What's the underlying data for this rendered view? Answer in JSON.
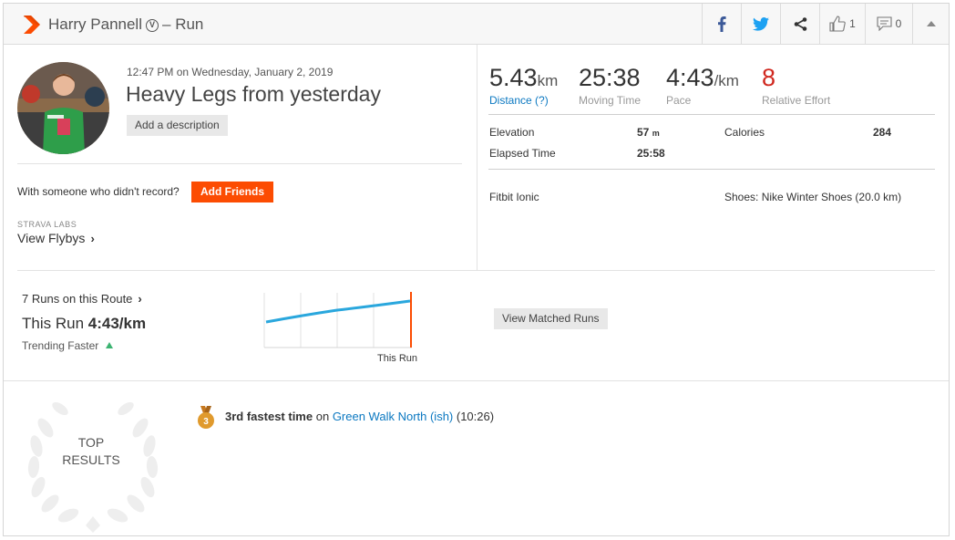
{
  "header": {
    "athlete": "Harry Pannell",
    "separator": "–",
    "sport": "Run",
    "kudos_count": "1",
    "comment_count": "0"
  },
  "activity": {
    "datetime": "12:47 PM on Wednesday, January 2, 2019",
    "name": "Heavy Legs from yesterday",
    "add_description_label": "Add a description",
    "with_someone_text": "With someone who didn't record?",
    "add_friends_label": "Add Friends",
    "labs_label": "STRAVA LABS",
    "flybys_label": "View Flybys"
  },
  "stats": {
    "distance": {
      "value": "5.43",
      "unit": "km",
      "label": "Distance (?)"
    },
    "moving_time": {
      "value": "25:38",
      "label": "Moving Time"
    },
    "pace": {
      "value": "4:43",
      "unit": "/km",
      "label": "Pace"
    },
    "relative_effort": {
      "value": "8",
      "label": "Relative Effort"
    },
    "elevation_label": "Elevation",
    "elevation_value": "57",
    "elevation_unit": "m",
    "calories_label": "Calories",
    "calories_value": "284",
    "elapsed_label": "Elapsed Time",
    "elapsed_value": "25:58",
    "device": "Fitbit Ionic",
    "shoes": "Shoes: Nike Winter Shoes (20.0 km)"
  },
  "route": {
    "runs_on_route": "7 Runs on this Route",
    "this_run_prefix": "This Run",
    "this_run_pace": "4:43/km",
    "trending": "Trending Faster",
    "this_run_label": "This Run",
    "view_matched_label": "View Matched Runs"
  },
  "top_results": {
    "line1": "TOP",
    "line2": "RESULTS",
    "medal_rank": "3",
    "achievement_bold": "3rd fastest time",
    "achievement_on": "on",
    "segment": "Green Walk North (ish)",
    "segment_time": "(10:26)"
  },
  "colors": {
    "brand": "#fc4c02",
    "link": "#0b78c1",
    "effort_red": "#d0281f",
    "trend_line": "#2aa7dd",
    "trend_up": "#3cb371",
    "medal": "#e09a2d"
  }
}
